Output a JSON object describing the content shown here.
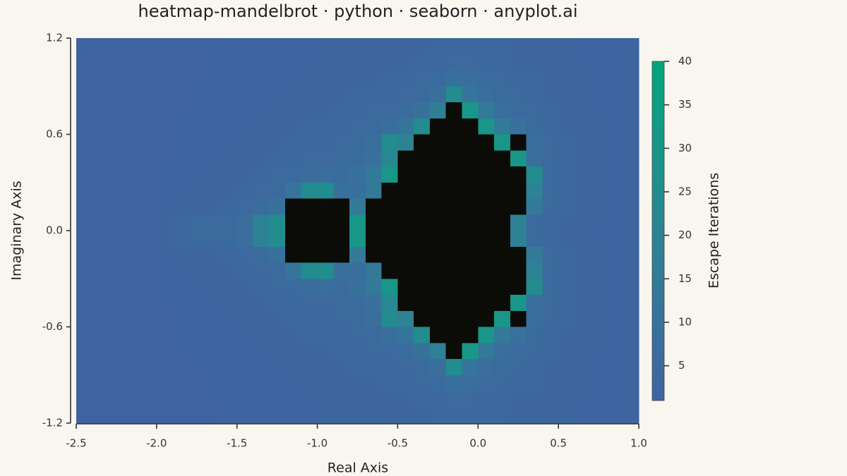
{
  "chart_data": {
    "type": "heatmap",
    "title": "heatmap-mandelbrot · python · seaborn · anyplot.ai",
    "x_label": "Real Axis",
    "y_label": "Imaginary Axis",
    "xlim": [
      -2.5,
      1.0
    ],
    "ylim": [
      -1.2,
      1.2
    ],
    "xticks": [
      {
        "value": -2.5,
        "label": "-2.5"
      },
      {
        "value": -2.0,
        "label": "-2.0"
      },
      {
        "value": -1.5,
        "label": "-1.5"
      },
      {
        "value": -1.0,
        "label": "-1.0"
      },
      -0.5,
      {
        "value": 0,
        "label": "0.0"
      },
      0.5,
      {
        "value": 1.0,
        "label": "1.0"
      }
    ],
    "yticks": [
      1.2,
      0.6,
      {
        "value": 0,
        "label": "0.0"
      },
      -0.6,
      -1.2
    ],
    "x": [
      -2.45,
      -2.35,
      -2.25,
      -2.15,
      -2.05,
      -1.95,
      -1.85,
      -1.75,
      -1.65,
      -1.55,
      -1.45,
      -1.35,
      -1.25,
      -1.15,
      -1.05,
      -0.95,
      -0.85,
      -0.75,
      -0.65,
      -0.55,
      -0.45,
      -0.35,
      -0.25,
      -0.15,
      -0.05,
      0.05,
      0.15,
      0.25,
      0.35,
      0.45,
      0.55,
      0.65,
      0.75,
      0.85,
      0.95
    ],
    "y": [
      1.15,
      1.05,
      0.95,
      0.85,
      0.75,
      0.65,
      0.55,
      0.45,
      0.35,
      0.25,
      0.15,
      0.05,
      -0.05,
      -0.15,
      -0.25,
      -0.35,
      -0.45,
      -0.55,
      -0.65,
      -0.75,
      -0.85,
      -0.95,
      -1.05,
      -1.15
    ],
    "z": [
      [
        1,
        1,
        1,
        1,
        1,
        1,
        1,
        1,
        1,
        2,
        2,
        2,
        2,
        2,
        2,
        3,
        3,
        3,
        3,
        3,
        3,
        3,
        4,
        4,
        4,
        4,
        4,
        3,
        3,
        3,
        3,
        2,
        2,
        2,
        2
      ],
      [
        1,
        1,
        1,
        1,
        1,
        1,
        1,
        1,
        2,
        2,
        2,
        2,
        2,
        2,
        2,
        2,
        3,
        3,
        3,
        3,
        3,
        4,
        4,
        5,
        5,
        4,
        4,
        3,
        3,
        3,
        3,
        2,
        2,
        2,
        2
      ],
      [
        1,
        1,
        1,
        1,
        1,
        1,
        1,
        1,
        2,
        2,
        2,
        2,
        2,
        2,
        3,
        3,
        3,
        3,
        3,
        4,
        4,
        5,
        6,
        9,
        8,
        6,
        5,
        4,
        4,
        3,
        3,
        3,
        2,
        2,
        2
      ],
      [
        1,
        1,
        1,
        1,
        1,
        1,
        1,
        2,
        2,
        2,
        2,
        2,
        2,
        3,
        3,
        3,
        3,
        4,
        4,
        4,
        5,
        6,
        8,
        25,
        12,
        8,
        6,
        5,
        4,
        3,
        3,
        3,
        2,
        2,
        2
      ],
      [
        1,
        1,
        1,
        1,
        1,
        1,
        1,
        2,
        2,
        2,
        2,
        2,
        3,
        3,
        3,
        3,
        4,
        4,
        5,
        5,
        7,
        10,
        18,
        null,
        30,
        14,
        8,
        6,
        5,
        4,
        3,
        3,
        2,
        2,
        2
      ],
      [
        1,
        1,
        1,
        1,
        1,
        1,
        2,
        2,
        2,
        2,
        2,
        3,
        3,
        3,
        4,
        4,
        4,
        5,
        6,
        8,
        12,
        25,
        null,
        null,
        null,
        30,
        15,
        10,
        6,
        4,
        3,
        3,
        3,
        2,
        2
      ],
      [
        1,
        1,
        1,
        1,
        1,
        1,
        2,
        2,
        2,
        2,
        3,
        3,
        3,
        4,
        4,
        4,
        5,
        6,
        8,
        25,
        20,
        null,
        null,
        null,
        null,
        null,
        30,
        null,
        8,
        5,
        4,
        3,
        3,
        2,
        2
      ],
      [
        1,
        1,
        1,
        1,
        1,
        1,
        2,
        2,
        2,
        3,
        3,
        3,
        4,
        4,
        5,
        5,
        6,
        7,
        10,
        22,
        null,
        null,
        null,
        null,
        null,
        null,
        null,
        30,
        8,
        5,
        4,
        3,
        3,
        2,
        2
      ],
      [
        1,
        1,
        1,
        1,
        1,
        2,
        2,
        2,
        3,
        3,
        3,
        4,
        5,
        6,
        7,
        8,
        7,
        10,
        14,
        30,
        null,
        null,
        null,
        null,
        null,
        null,
        null,
        null,
        25,
        6,
        4,
        3,
        3,
        2,
        2
      ],
      [
        1,
        1,
        1,
        1,
        1,
        2,
        2,
        3,
        3,
        3,
        4,
        5,
        6,
        12,
        25,
        25,
        10,
        8,
        15,
        null,
        null,
        null,
        null,
        null,
        null,
        null,
        null,
        null,
        20,
        6,
        4,
        3,
        3,
        2,
        2
      ],
      [
        1,
        1,
        1,
        1,
        1,
        2,
        3,
        3,
        3,
        4,
        5,
        7,
        10,
        null,
        null,
        null,
        null,
        15,
        null,
        null,
        null,
        null,
        null,
        null,
        null,
        null,
        null,
        null,
        15,
        5,
        4,
        3,
        3,
        2,
        2
      ],
      [
        1,
        1,
        1,
        1,
        1,
        3,
        4,
        6,
        5,
        6,
        8,
        20,
        25,
        null,
        null,
        null,
        null,
        30,
        null,
        null,
        null,
        null,
        null,
        null,
        null,
        null,
        null,
        20,
        6,
        4,
        3,
        3,
        2,
        2,
        2
      ],
      [
        1,
        1,
        1,
        1,
        1,
        3,
        4,
        6,
        5,
        6,
        8,
        20,
        25,
        null,
        null,
        null,
        null,
        30,
        null,
        null,
        null,
        null,
        null,
        null,
        null,
        null,
        null,
        20,
        6,
        4,
        3,
        3,
        2,
        2,
        2
      ],
      [
        1,
        1,
        1,
        1,
        1,
        2,
        3,
        3,
        3,
        4,
        5,
        7,
        10,
        null,
        null,
        null,
        null,
        15,
        null,
        null,
        null,
        null,
        null,
        null,
        null,
        null,
        null,
        null,
        15,
        5,
        4,
        3,
        3,
        2,
        2
      ],
      [
        1,
        1,
        1,
        1,
        1,
        2,
        2,
        3,
        3,
        3,
        4,
        5,
        6,
        12,
        25,
        25,
        10,
        8,
        15,
        null,
        null,
        null,
        null,
        null,
        null,
        null,
        null,
        null,
        20,
        6,
        4,
        3,
        3,
        2,
        2
      ],
      [
        1,
        1,
        1,
        1,
        1,
        2,
        2,
        2,
        3,
        3,
        3,
        4,
        5,
        6,
        7,
        8,
        7,
        10,
        14,
        30,
        null,
        null,
        null,
        null,
        null,
        null,
        null,
        null,
        25,
        6,
        4,
        3,
        3,
        2,
        2
      ],
      [
        1,
        1,
        1,
        1,
        1,
        1,
        2,
        2,
        2,
        3,
        3,
        3,
        4,
        4,
        5,
        5,
        6,
        7,
        10,
        22,
        null,
        null,
        null,
        null,
        null,
        null,
        null,
        30,
        8,
        5,
        4,
        3,
        3,
        2,
        2
      ],
      [
        1,
        1,
        1,
        1,
        1,
        1,
        2,
        2,
        2,
        2,
        3,
        3,
        3,
        4,
        4,
        4,
        5,
        6,
        8,
        25,
        20,
        null,
        null,
        null,
        null,
        null,
        30,
        null,
        8,
        5,
        4,
        3,
        3,
        2,
        2
      ],
      [
        1,
        1,
        1,
        1,
        1,
        1,
        2,
        2,
        2,
        2,
        2,
        3,
        3,
        3,
        4,
        4,
        4,
        5,
        6,
        8,
        12,
        25,
        null,
        null,
        null,
        30,
        15,
        10,
        6,
        4,
        3,
        3,
        3,
        2,
        2
      ],
      [
        1,
        1,
        1,
        1,
        1,
        1,
        1,
        2,
        2,
        2,
        2,
        2,
        3,
        3,
        3,
        3,
        4,
        4,
        5,
        5,
        7,
        10,
        18,
        null,
        30,
        14,
        8,
        6,
        5,
        4,
        3,
        3,
        2,
        2,
        2
      ],
      [
        1,
        1,
        1,
        1,
        1,
        1,
        1,
        2,
        2,
        2,
        2,
        2,
        2,
        3,
        3,
        3,
        3,
        4,
        4,
        4,
        5,
        6,
        8,
        25,
        12,
        8,
        6,
        5,
        4,
        3,
        3,
        3,
        2,
        2,
        2
      ],
      [
        1,
        1,
        1,
        1,
        1,
        1,
        1,
        1,
        2,
        2,
        2,
        2,
        2,
        2,
        3,
        3,
        3,
        3,
        3,
        4,
        4,
        5,
        6,
        9,
        8,
        6,
        5,
        4,
        4,
        3,
        3,
        3,
        2,
        2,
        2
      ],
      [
        1,
        1,
        1,
        1,
        1,
        1,
        1,
        1,
        2,
        2,
        2,
        2,
        2,
        2,
        2,
        2,
        3,
        3,
        3,
        3,
        3,
        4,
        4,
        5,
        5,
        4,
        4,
        3,
        3,
        3,
        3,
        2,
        2,
        2,
        2
      ],
      [
        1,
        1,
        1,
        1,
        1,
        1,
        1,
        1,
        1,
        2,
        2,
        2,
        2,
        2,
        2,
        3,
        3,
        3,
        3,
        3,
        3,
        3,
        4,
        4,
        4,
        4,
        4,
        3,
        3,
        3,
        3,
        2,
        2,
        2,
        2
      ]
    ],
    "colormap": [
      "#3f63a0",
      "#37739c",
      "#2c8493",
      "#179688",
      "#00a67d"
    ],
    "inside_color": "#0b0b08",
    "colorbar": {
      "label": "Escape Iterations",
      "lim": [
        1,
        40
      ],
      "ticks": [
        5,
        10,
        15,
        20,
        25,
        30,
        35,
        40
      ]
    }
  }
}
